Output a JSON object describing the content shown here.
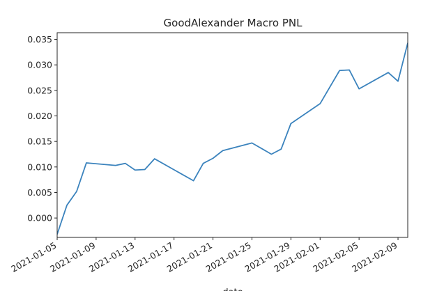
{
  "chart_data": {
    "type": "line",
    "title": "GoodAlexander Macro PNL",
    "xlabel": "date",
    "ylabel": "",
    "grid": false,
    "legend": "none",
    "line_color": "#3b83bd",
    "xlim": [
      "2021-01-05",
      "2021-02-10"
    ],
    "ylim": [
      -0.0038,
      0.0363
    ],
    "x_ticks": [
      "2021-01-05",
      "2021-01-09",
      "2021-01-13",
      "2021-01-17",
      "2021-01-21",
      "2021-01-25",
      "2021-01-29",
      "2021-02-01",
      "2021-02-05",
      "2021-02-09"
    ],
    "y_ticks": [
      "0.000",
      "0.005",
      "0.010",
      "0.015",
      "0.020",
      "0.025",
      "0.030",
      "0.035"
    ],
    "series": [
      {
        "points": [
          [
            "2021-01-05",
            -0.0032
          ],
          [
            "2021-01-06",
            0.0025
          ],
          [
            "2021-01-07",
            0.0052
          ],
          [
            "2021-01-08",
            0.0108
          ],
          [
            "2021-01-11",
            0.0103
          ],
          [
            "2021-01-12",
            0.0107
          ],
          [
            "2021-01-13",
            0.0094
          ],
          [
            "2021-01-14",
            0.0095
          ],
          [
            "2021-01-15",
            0.0116
          ],
          [
            "2021-01-19",
            0.0073
          ],
          [
            "2021-01-20",
            0.0107
          ],
          [
            "2021-01-21",
            0.0117
          ],
          [
            "2021-01-22",
            0.0132
          ],
          [
            "2021-01-25",
            0.0147
          ],
          [
            "2021-01-27",
            0.0125
          ],
          [
            "2021-01-28",
            0.0135
          ],
          [
            "2021-01-29",
            0.0185
          ],
          [
            "2021-02-01",
            0.0224
          ],
          [
            "2021-02-03",
            0.0289
          ],
          [
            "2021-02-04",
            0.029
          ],
          [
            "2021-02-05",
            0.0253
          ],
          [
            "2021-02-08",
            0.0285
          ],
          [
            "2021-02-09",
            0.0268
          ],
          [
            "2021-02-10",
            0.0343
          ]
        ]
      }
    ]
  }
}
